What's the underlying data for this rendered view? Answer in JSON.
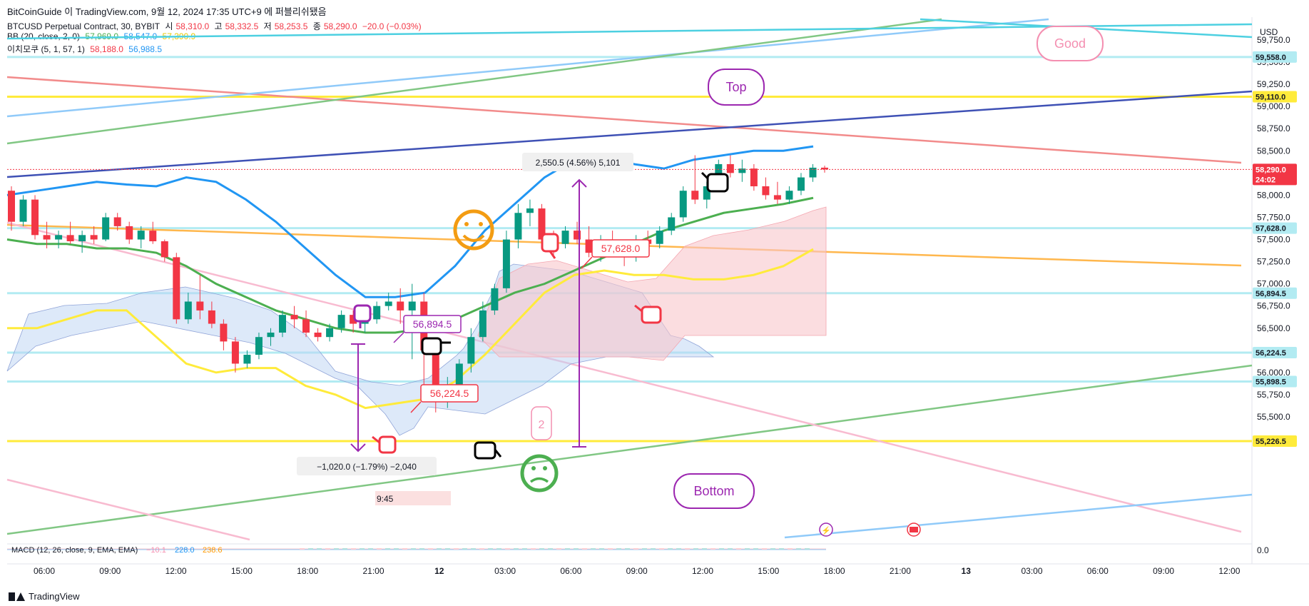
{
  "header": {
    "publish_line": "BitCoinGuide 이 TradingView.com, 9월 12, 2024 17:35 UTC+9 에 퍼블리쉬됐음",
    "symbol_line": "BTCUSD Perpetual Contract, 30, BYBIT",
    "ohlc": {
      "o_label": "시",
      "o": "58,310.0",
      "h_label": "고",
      "h": "58,332.5",
      "l_label": "저",
      "l": "58,253.5",
      "c_label": "종",
      "c": "58,290.0",
      "chg": "−20.0 (−0.03%)"
    },
    "bb_line": {
      "name": "BB (20, close, 2, 0)",
      "v1": "57,969.0",
      "v2": "58,547.0",
      "v3": "57,390.9"
    },
    "ichimoku_line": {
      "name": "이치모쿠 (5, 1, 57, 1)",
      "v1": "58,188.0",
      "v2": "56,988.5"
    },
    "macd_line": {
      "name": "MACD (12, 26, close, 9, EMA, EMA)",
      "v1": "−10.1",
      "v2": "228.0",
      "v3": "238.6"
    },
    "currency": "USD"
  },
  "colors": {
    "up": "#089981",
    "down": "#f23645",
    "bb_basis": "#4caf50",
    "bb_upper": "#2196f3",
    "bb_lower": "#ffeb3b",
    "accent_purple": "#9c27b0",
    "pink": "#f48fb1"
  },
  "y_axis": {
    "ticks": [
      "59,750.0",
      "59,500.0",
      "59,250.0",
      "59,000.0",
      "58,750.0",
      "58,500.0",
      "58,000.0",
      "57,750.0",
      "57,500.0",
      "57,250.0",
      "57,000.0",
      "56,750.0",
      "56,500.0",
      "56,000.0",
      "55,750.0",
      "55,500.0"
    ],
    "macd_zero": "0.0"
  },
  "x_axis": {
    "ticks": [
      "06:00",
      "09:00",
      "12:00",
      "15:00",
      "18:00",
      "21:00",
      "12",
      "03:00",
      "06:00",
      "09:00",
      "12:00",
      "15:00",
      "18:00",
      "21:00",
      "13",
      "03:00",
      "06:00",
      "09:00",
      "12:00"
    ]
  },
  "price_tags": [
    {
      "label": "59,558.0",
      "bg": "#b2ebf2",
      "fg": "#131722",
      "price": 59558
    },
    {
      "label": "59,110.0",
      "bg": "#ffeb3b",
      "fg": "#131722",
      "price": 59110
    },
    {
      "label": "58,290.0",
      "bg": "#f23645",
      "fg": "#ffffff",
      "price": 58290,
      "sub": "24:02"
    },
    {
      "label": "57,628.0",
      "bg": "#b2ebf2",
      "fg": "#131722",
      "price": 57628
    },
    {
      "label": "56,894.5",
      "bg": "#b2ebf2",
      "fg": "#131722",
      "price": 56894.5
    },
    {
      "label": "56,224.5",
      "bg": "#b2ebf2",
      "fg": "#131722",
      "price": 56224.5
    },
    {
      "label": "55,898.5",
      "bg": "#b2ebf2",
      "fg": "#131722",
      "price": 55898.5
    },
    {
      "label": "55,226.5",
      "bg": "#ffeb3b",
      "fg": "#131722",
      "price": 55226.5
    }
  ],
  "annotations": {
    "good": "Good",
    "top": "Top",
    "bottom": "Bottom",
    "wave2": "2",
    "measure_up": "2,550.5 (4.56%) 5,101",
    "measure_down": "−1,020.0 (−1.79%) −2,040",
    "time_label": "9:45",
    "level_57628": "57,628.0",
    "level_56894": "56,894.5",
    "level_56224": "56,224.5"
  },
  "footer": {
    "brand": "TradingView"
  },
  "chart_data": {
    "type": "candlestick",
    "timeframe": "30",
    "symbol": "BTCUSD",
    "ylim": [
      55200,
      60000
    ],
    "last_price": 58290.0,
    "candles": [
      [
        58050,
        58100,
        57600,
        57700
      ],
      [
        57700,
        58000,
        57650,
        57950
      ],
      [
        57950,
        58000,
        57500,
        57550
      ],
      [
        57550,
        57700,
        57400,
        57500
      ],
      [
        57500,
        57600,
        57400,
        57550
      ],
      [
        57550,
        57700,
        57450,
        57480
      ],
      [
        57480,
        57600,
        57350,
        57550
      ],
      [
        57550,
        57650,
        57450,
        57500
      ],
      [
        57500,
        57800,
        57480,
        57750
      ],
      [
        57750,
        57800,
        57600,
        57650
      ],
      [
        57650,
        57700,
        57450,
        57500
      ],
      [
        57500,
        57650,
        57400,
        57600
      ],
      [
        57600,
        57700,
        57450,
        57480
      ],
      [
        57480,
        57500,
        57250,
        57300
      ],
      [
        57300,
        57350,
        56550,
        56600
      ],
      [
        56600,
        56900,
        56550,
        56800
      ],
      [
        56800,
        57100,
        56600,
        56700
      ],
      [
        56700,
        56800,
        56500,
        56550
      ],
      [
        56550,
        56600,
        56250,
        56350
      ],
      [
        56350,
        56400,
        56000,
        56100
      ],
      [
        56100,
        56250,
        56050,
        56200
      ],
      [
        56200,
        56450,
        56150,
        56400
      ],
      [
        56400,
        56500,
        56300,
        56450
      ],
      [
        56450,
        56700,
        56400,
        56650
      ],
      [
        56650,
        56750,
        56500,
        56600
      ],
      [
        56600,
        56700,
        56400,
        56450
      ],
      [
        56450,
        56500,
        56350,
        56400
      ],
      [
        56400,
        56550,
        56350,
        56500
      ],
      [
        56500,
        56700,
        56450,
        56650
      ],
      [
        56650,
        56700,
        56450,
        56550
      ],
      [
        56550,
        56650,
        56450,
        56600
      ],
      [
        56600,
        56800,
        56550,
        56750
      ],
      [
        56750,
        56900,
        56700,
        56800
      ],
      [
        56800,
        56950,
        56550,
        56700
      ],
      [
        56700,
        57000,
        56150,
        56800
      ],
      [
        56800,
        56900,
        55700,
        56250
      ],
      [
        56250,
        56300,
        55550,
        55800
      ],
      [
        55800,
        55950,
        55600,
        55850
      ],
      [
        55850,
        56150,
        55800,
        56100
      ],
      [
        56100,
        56500,
        56000,
        56400
      ],
      [
        56400,
        56800,
        56350,
        56700
      ],
      [
        56700,
        57000,
        56650,
        56950
      ],
      [
        56950,
        57600,
        56900,
        57500
      ],
      [
        57500,
        57900,
        57400,
        57800
      ],
      [
        57800,
        57950,
        57650,
        57850
      ],
      [
        57850,
        57900,
        57450,
        57500
      ],
      [
        57500,
        57600,
        57300,
        57450
      ],
      [
        57450,
        57650,
        57400,
        57600
      ],
      [
        57600,
        57700,
        57450,
        57500
      ],
      [
        57500,
        57650,
        57300,
        57350
      ],
      [
        57350,
        57550,
        57250,
        57450
      ],
      [
        57450,
        57600,
        57350,
        57400
      ],
      [
        57400,
        57500,
        57200,
        57300
      ],
      [
        57300,
        57550,
        57250,
        57500
      ],
      [
        57500,
        57600,
        57400,
        57450
      ],
      [
        57450,
        57650,
        57400,
        57600
      ],
      [
        57600,
        57800,
        57550,
        57750
      ],
      [
        57750,
        58100,
        57700,
        58050
      ],
      [
        58050,
        58450,
        57900,
        57950
      ],
      [
        57950,
        58150,
        57850,
        58100
      ],
      [
        58100,
        58400,
        58050,
        58350
      ],
      [
        58350,
        58450,
        58200,
        58250
      ],
      [
        58250,
        58400,
        58150,
        58300
      ],
      [
        58300,
        58350,
        58050,
        58100
      ],
      [
        58100,
        58200,
        57950,
        58000
      ],
      [
        58000,
        58150,
        57900,
        57950
      ],
      [
        57950,
        58100,
        57900,
        58050
      ],
      [
        58050,
        58250,
        58000,
        58200
      ],
      [
        58200,
        58350,
        58150,
        58310
      ],
      [
        58310,
        58332.5,
        58253.5,
        58290
      ]
    ],
    "bollinger": {
      "upper": [
        58000,
        58050,
        58100,
        58150,
        58120,
        58100,
        58200,
        58150,
        57950,
        57700,
        57400,
        57100,
        56850,
        56850,
        56900,
        57200,
        57600,
        57900,
        58200,
        58400,
        58450,
        58350,
        58300,
        58400,
        58450,
        58500,
        58500,
        58550
      ],
      "basis": [
        57500,
        57450,
        57450,
        57400,
        57400,
        57350,
        57200,
        57000,
        56850,
        56700,
        56600,
        56500,
        56450,
        56450,
        56500,
        56600,
        56750,
        56900,
        57000,
        57150,
        57300,
        57450,
        57600,
        57700,
        57800,
        57850,
        57900,
        57969
      ],
      "lower": [
        56500,
        56500,
        56600,
        56700,
        56700,
        56400,
        56100,
        56000,
        56050,
        56050,
        55850,
        55750,
        55600,
        55650,
        55700,
        55900,
        56200,
        56550,
        56900,
        57100,
        57150,
        57100,
        57100,
        57050,
        57050,
        57100,
        57200,
        57390.9
      ]
    }
  }
}
